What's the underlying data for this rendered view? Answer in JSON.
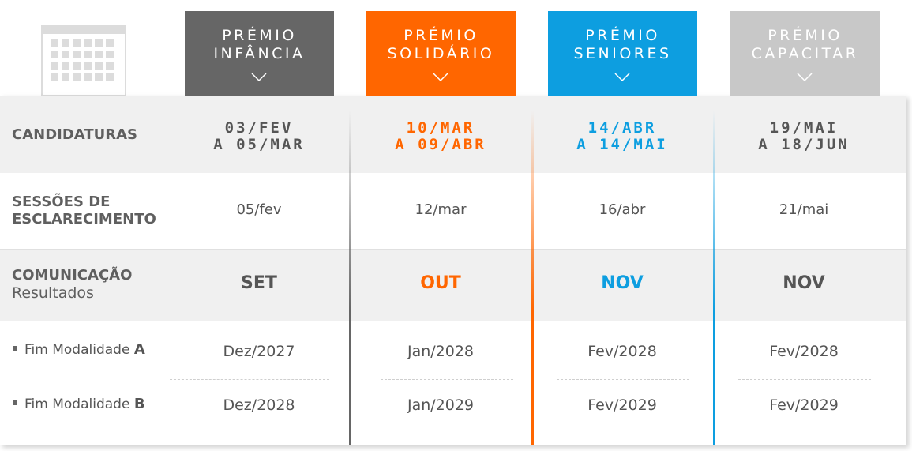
{
  "colors": {
    "infancia": "#666666",
    "solidario": "#ff6600",
    "seniores": "#0d9ee0",
    "capacitar": "#c8c8c8",
    "text_dark": "#555555",
    "row_gray": "#f0f0f0"
  },
  "icons": {
    "calendar": "calendar-icon",
    "chevron": "chevron-down-icon",
    "bullet": "square-bullet-icon"
  },
  "tabs": [
    {
      "line1": "PRÉMIO",
      "line2": "INFÂNCIA"
    },
    {
      "line1": "PRÉMIO",
      "line2": "SOLIDÁRIO"
    },
    {
      "line1": "PRÉMIO",
      "line2": "SENIORES"
    },
    {
      "line1": "PRÉMIO",
      "line2": "CAPACITAR"
    }
  ],
  "rows": {
    "candidaturas": {
      "label": "CANDIDATURAS",
      "values": [
        {
          "line1": "03/FEV",
          "line2": "A 05/MAR"
        },
        {
          "line1": "10/MAR",
          "line2": "A 09/ABR"
        },
        {
          "line1": "14/ABR",
          "line2": "A 14/MAI"
        },
        {
          "line1": "19/MAI",
          "line2": "A 18/JUN"
        }
      ]
    },
    "sessoes": {
      "label_line1": "SESSÕES DE",
      "label_line2": "ESCLARECIMENTO",
      "values": [
        "05/fev",
        "12/mar",
        "16/abr",
        "21/mai"
      ]
    },
    "comunicacao": {
      "label": "COMUNICAÇÃO",
      "sublabel": "Resultados",
      "values": [
        "SET",
        "OUT",
        "NOV",
        "NOV"
      ]
    },
    "modalidade_a": {
      "label_prefix": "Fim Modalidade",
      "label_letter": "A",
      "values": [
        "Dez/2027",
        "Jan/2028",
        "Fev/2028",
        "Fev/2028"
      ]
    },
    "modalidade_b": {
      "label_prefix": "Fim Modalidade",
      "label_letter": "B",
      "values": [
        "Dez/2028",
        "Jan/2029",
        "Fev/2029",
        "Fev/2029"
      ]
    }
  }
}
